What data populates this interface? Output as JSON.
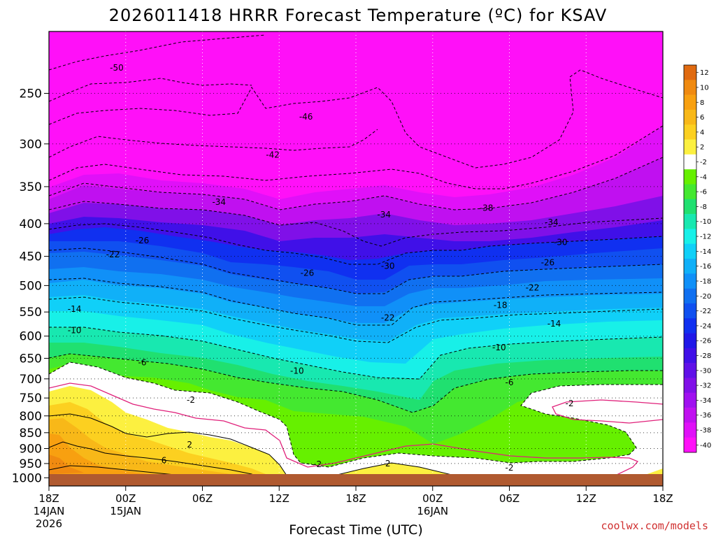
{
  "chart_data": {
    "type": "heatmap",
    "title": "2026011418 HRRR Forecast Temperature (ºC) for KSAV",
    "xlabel": "Forecast Time (UTC)",
    "ylabel": "",
    "y_axis": {
      "scale": "log",
      "inverted": true,
      "range": [
        200,
        1030
      ],
      "ticks": [
        250,
        300,
        350,
        400,
        450,
        500,
        550,
        600,
        650,
        700,
        750,
        800,
        850,
        900,
        950,
        1000
      ]
    },
    "x_axis": {
      "range_hours": [
        0,
        48
      ],
      "ticks": [
        {
          "hour": 0,
          "label": "18Z",
          "sub": [
            "14JAN",
            "2026"
          ]
        },
        {
          "hour": 6,
          "label": "00Z",
          "sub": [
            "15JAN"
          ]
        },
        {
          "hour": 12,
          "label": "06Z",
          "sub": []
        },
        {
          "hour": 18,
          "label": "12Z",
          "sub": []
        },
        {
          "hour": 24,
          "label": "18Z",
          "sub": []
        },
        {
          "hour": 30,
          "label": "00Z",
          "sub": [
            "16JAN"
          ]
        },
        {
          "hour": 36,
          "label": "06Z",
          "sub": []
        },
        {
          "hour": 42,
          "label": "12Z",
          "sub": []
        },
        {
          "hour": 48,
          "label": "18Z",
          "sub": []
        }
      ]
    },
    "grid": true,
    "colorbar": {
      "placement": "right",
      "labels": [
        "12",
        "10",
        "8",
        "6",
        "4",
        "2",
        "-2",
        "-4",
        "-6",
        "-8",
        "-10",
        "-12",
        "-14",
        "-16",
        "-18",
        "-20",
        "-22",
        "-24",
        "-26",
        "-28",
        "-30",
        "-32",
        "-34",
        "-36",
        "-38",
        "-40"
      ],
      "colors": [
        "#e06a10",
        "#f08a10",
        "#f8a010",
        "#f8b818",
        "#fcd020",
        "#fcf040",
        "#ffffff",
        "#66f000",
        "#44e830",
        "#20e070",
        "#18e8b0",
        "#18f0e8",
        "#10d0f8",
        "#10b0f8",
        "#1090f8",
        "#1070f0",
        "#1050f0",
        "#1030f0",
        "#2018e8",
        "#4010e8",
        "#6010e8",
        "#8010e8",
        "#a010f0",
        "#c010f0",
        "#e010f8",
        "#ff10f8"
      ]
    },
    "isotherm_labels": [
      {
        "hour": 5.3,
        "p": 228,
        "text": "-50"
      },
      {
        "hour": 20.1,
        "p": 272,
        "text": "-46"
      },
      {
        "hour": 17.5,
        "p": 312,
        "text": "-42"
      },
      {
        "hour": 13.3,
        "p": 370,
        "text": "-34"
      },
      {
        "hour": 26.2,
        "p": 387,
        "text": "-34"
      },
      {
        "hour": 34.2,
        "p": 378,
        "text": "-38"
      },
      {
        "hour": 39.3,
        "p": 398,
        "text": "-34"
      },
      {
        "hour": 40.0,
        "p": 428,
        "text": "-30"
      },
      {
        "hour": 26.5,
        "p": 466,
        "text": "-30"
      },
      {
        "hour": 7.3,
        "p": 425,
        "text": "-26"
      },
      {
        "hour": 20.2,
        "p": 478,
        "text": "-26"
      },
      {
        "hour": 39.0,
        "p": 460,
        "text": "-26"
      },
      {
        "hour": 5.0,
        "p": 447,
        "text": "-22"
      },
      {
        "hour": 37.8,
        "p": 504,
        "text": "-22"
      },
      {
        "hour": 26.5,
        "p": 562,
        "text": "-22"
      },
      {
        "hour": 35.3,
        "p": 537,
        "text": "-18"
      },
      {
        "hour": 2.0,
        "p": 544,
        "text": "-14"
      },
      {
        "hour": 39.5,
        "p": 574,
        "text": "-14"
      },
      {
        "hour": 2.0,
        "p": 588,
        "text": "-10"
      },
      {
        "hour": 19.4,
        "p": 680,
        "text": "-10"
      },
      {
        "hour": 35.2,
        "p": 625,
        "text": "-10"
      },
      {
        "hour": 7.3,
        "p": 660,
        "text": "-6"
      },
      {
        "hour": 36.0,
        "p": 709,
        "text": "-6"
      },
      {
        "hour": 11.1,
        "p": 755,
        "text": "-2"
      },
      {
        "hour": 40.7,
        "p": 765,
        "text": "-2"
      },
      {
        "hour": 21.0,
        "p": 952,
        "text": "-2"
      },
      {
        "hour": 36.0,
        "p": 965,
        "text": "-2"
      },
      {
        "hour": 11.0,
        "p": 888,
        "text": "2"
      },
      {
        "hour": 26.5,
        "p": 950,
        "text": "2"
      },
      {
        "hour": 9.0,
        "p": 940,
        "text": "6"
      }
    ]
  },
  "watermark": "coolwx.com/models"
}
